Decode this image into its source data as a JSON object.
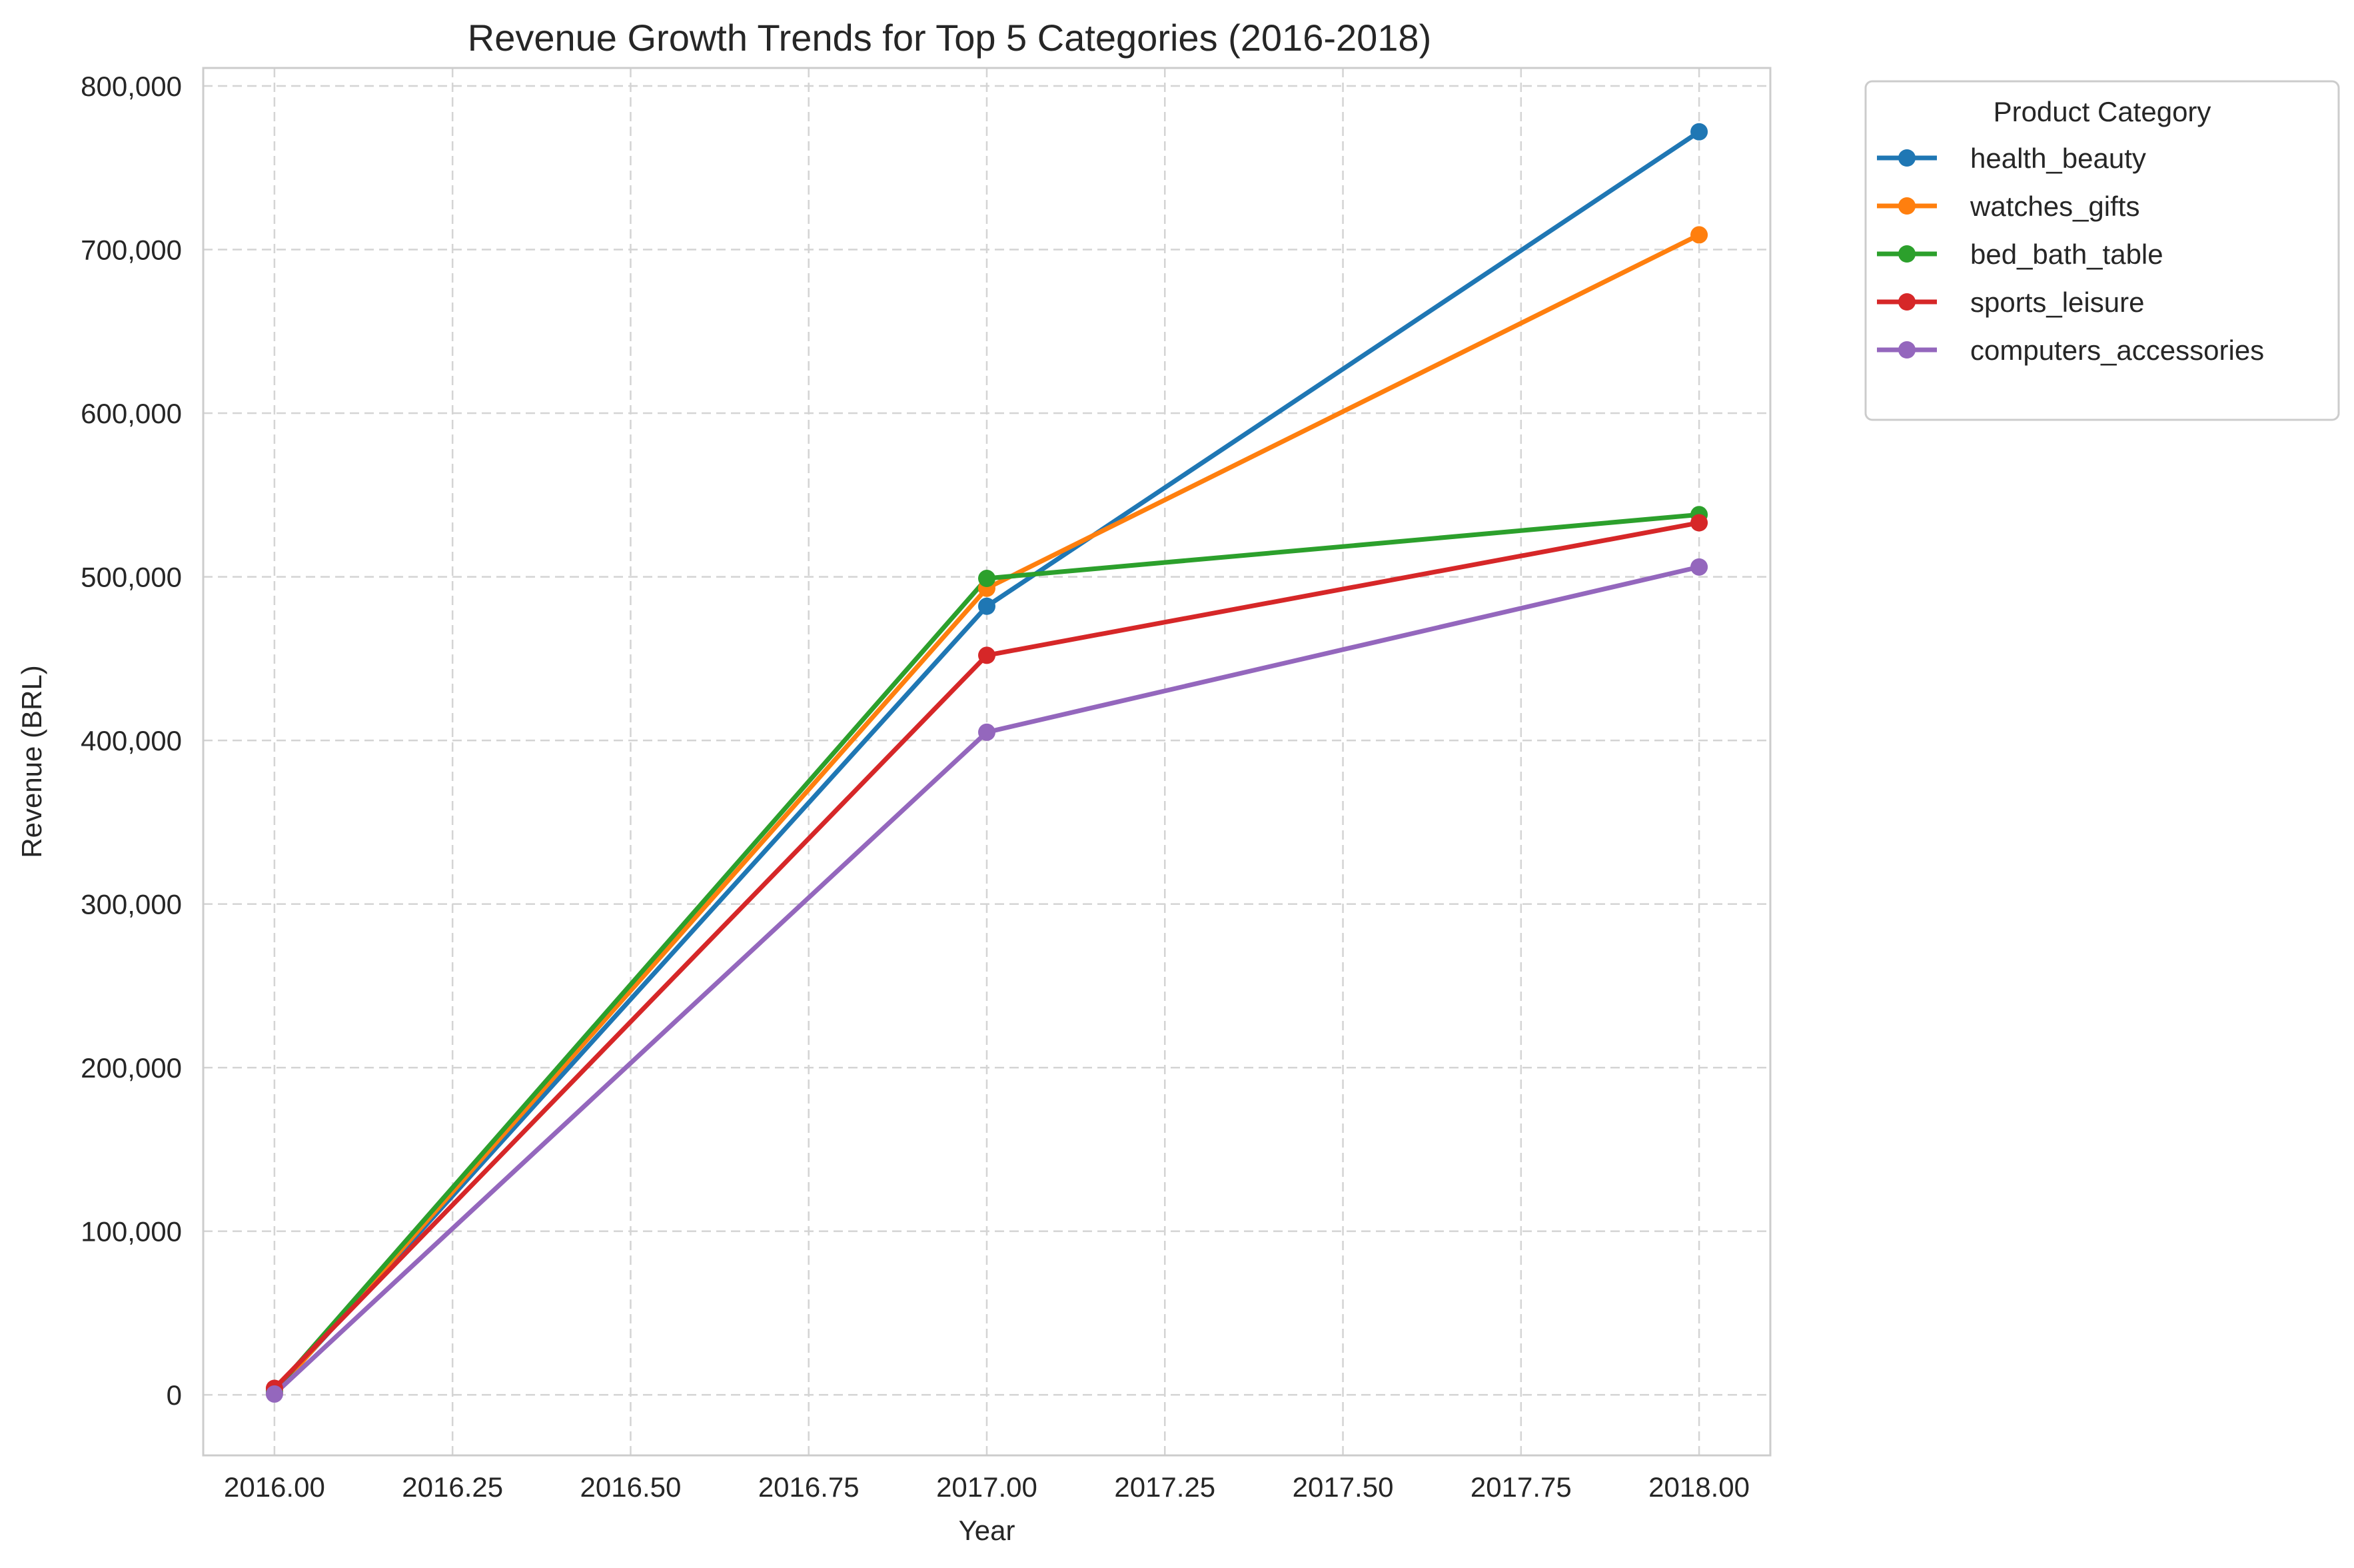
{
  "chart_data": {
    "type": "line",
    "title": "Revenue Growth Trends for Top 5 Categories (2016-2018)",
    "xlabel": "Year",
    "ylabel": "Revenue (BRL)",
    "xlim": [
      2015.9,
      2018.1
    ],
    "ylim": [
      -37000,
      811000
    ],
    "x_ticks": [
      "2016.00",
      "2016.25",
      "2016.50",
      "2016.75",
      "2017.00",
      "2017.25",
      "2017.50",
      "2017.75",
      "2018.00"
    ],
    "x_tick_values": [
      2016.0,
      2016.25,
      2016.5,
      2016.75,
      2017.0,
      2017.25,
      2017.5,
      2017.75,
      2018.0
    ],
    "y_ticks": [
      "0",
      "100,000",
      "200,000",
      "300,000",
      "400,000",
      "500,000",
      "600,000",
      "700,000",
      "800,000"
    ],
    "y_tick_values": [
      0,
      100000,
      200000,
      300000,
      400000,
      500000,
      600000,
      700000,
      800000
    ],
    "grid": true,
    "legend": {
      "title": "Product Category",
      "placement": "outside-top-right"
    },
    "x": [
      2016,
      2017,
      2018
    ],
    "series": [
      {
        "name": "health_beauty",
        "color": "#1f77b4",
        "values": [
          1500,
          482000,
          772000
        ]
      },
      {
        "name": "watches_gifts",
        "color": "#ff7f0e",
        "values": [
          1000,
          493000,
          709000
        ]
      },
      {
        "name": "bed_bath_table",
        "color": "#2ca02c",
        "values": [
          2500,
          499000,
          538000
        ]
      },
      {
        "name": "sports_leisure",
        "color": "#d62728",
        "values": [
          4000,
          452000,
          533000
        ]
      },
      {
        "name": "computers_accessories",
        "color": "#9467bd",
        "values": [
          500,
          405000,
          506000
        ]
      }
    ]
  }
}
